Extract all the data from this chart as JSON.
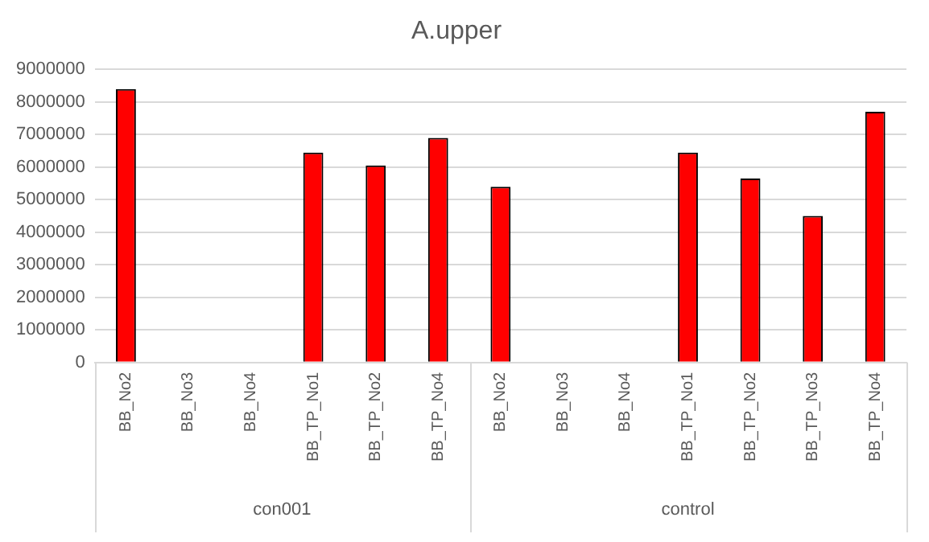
{
  "chart_data": {
    "type": "bar",
    "title": "A.upper",
    "categories": [
      "BB_No2",
      "BB_No3",
      "BB_No4",
      "BB_TP_No1",
      "BB_TP_No2",
      "BB_TP_No4",
      "BB_No2",
      "BB_No3",
      "BB_No4",
      "BB_TP_No1",
      "BB_TP_No2",
      "BB_TP_No3",
      "BB_TP_No4"
    ],
    "values": [
      8400000,
      null,
      null,
      6450000,
      6050000,
      6900000,
      5400000,
      null,
      null,
      6450000,
      5650000,
      4500000,
      7700000
    ],
    "color": "#ff0000",
    "ylim": [
      0,
      9000000
    ],
    "yticks": [
      0,
      1000000,
      2000000,
      3000000,
      4000000,
      5000000,
      6000000,
      7000000,
      8000000,
      9000000
    ],
    "grid": "y",
    "annotations": [
      "con001",
      "control"
    ]
  }
}
